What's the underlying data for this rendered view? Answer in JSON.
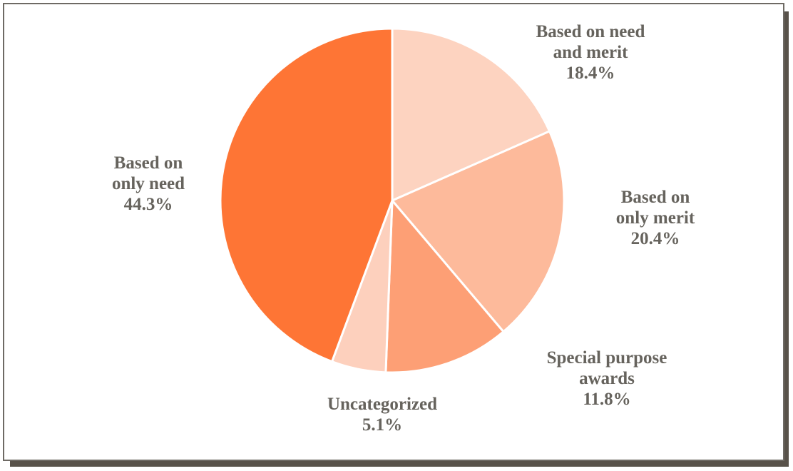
{
  "chart_data": {
    "type": "pie",
    "title": "",
    "start_angle_deg": 90,
    "direction": "clockwise",
    "slices": [
      {
        "key": "need_merit",
        "label_lines": [
          "Based on need",
          "and merit"
        ],
        "percent_text": "18.4%",
        "value": 18.4,
        "color": "#fdd3c0"
      },
      {
        "key": "merit",
        "label_lines": [
          "Based on",
          "only merit"
        ],
        "percent_text": "20.4%",
        "value": 20.4,
        "color": "#fdba9b"
      },
      {
        "key": "special",
        "label_lines": [
          "Special purpose",
          "awards"
        ],
        "percent_text": "11.8%",
        "value": 11.8,
        "color": "#fd9f75"
      },
      {
        "key": "uncat",
        "label_lines": [
          "Uncategorized"
        ],
        "percent_text": "5.1%",
        "value": 5.1,
        "color": "#fdd0bd"
      },
      {
        "key": "need",
        "label_lines": [
          "Based on",
          "only  need"
        ],
        "percent_text": "44.3%",
        "value": 44.3,
        "color": "#fe7535"
      }
    ]
  }
}
